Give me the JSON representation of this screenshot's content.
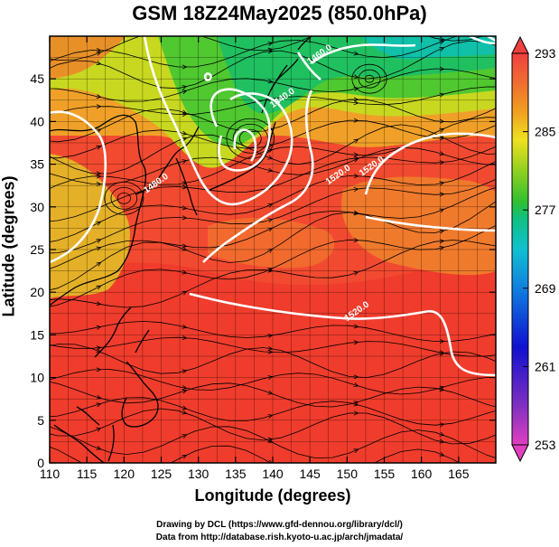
{
  "title": "GSM 18Z24May2025 (850.0hPa)",
  "x_axis": {
    "label": "Longitude (degrees)",
    "ticks": [
      "110",
      "115",
      "120",
      "125",
      "130",
      "135",
      "140",
      "145",
      "150",
      "155",
      "160",
      "165"
    ],
    "range": [
      110,
      170
    ]
  },
  "y_axis": {
    "label": "Latitude (degrees)",
    "ticks": [
      "0",
      "5",
      "10",
      "15",
      "20",
      "25",
      "30",
      "35",
      "40",
      "45"
    ],
    "range": [
      0,
      50
    ]
  },
  "colorbar": {
    "ticks": [
      "253",
      "261",
      "269",
      "277",
      "285",
      "293"
    ],
    "range": [
      253,
      293
    ],
    "colors": [
      "#e040c0",
      "#8030c0",
      "#1010d0",
      "#1080e0",
      "#10c0d0",
      "#10c080",
      "#30c030",
      "#90d020",
      "#f0e020",
      "#f0a020",
      "#f07030",
      "#f04040"
    ]
  },
  "contours": [
    {
      "label": "1440.0",
      "lon": 141.5,
      "lat": 42.5
    },
    {
      "label": "1460.0",
      "lon": 146.5,
      "lat": 47.6
    },
    {
      "label": "1480.0",
      "lon": 124.5,
      "lat": 32.5
    },
    {
      "label": "1520.0",
      "lon": 149.0,
      "lat": 33.5
    },
    {
      "label": "1520.0",
      "lon": 153.5,
      "lat": 34.5
    },
    {
      "label": "1520.0",
      "lon": 151.5,
      "lat": 17.5
    }
  ],
  "credits": {
    "line1": "Drawing by DCL (https://www.gfd-dennou.org/library/dcl/)",
    "line2": "Data from http://database.rish.kyoto-u.ac.jp/arch/jmadata/"
  }
}
